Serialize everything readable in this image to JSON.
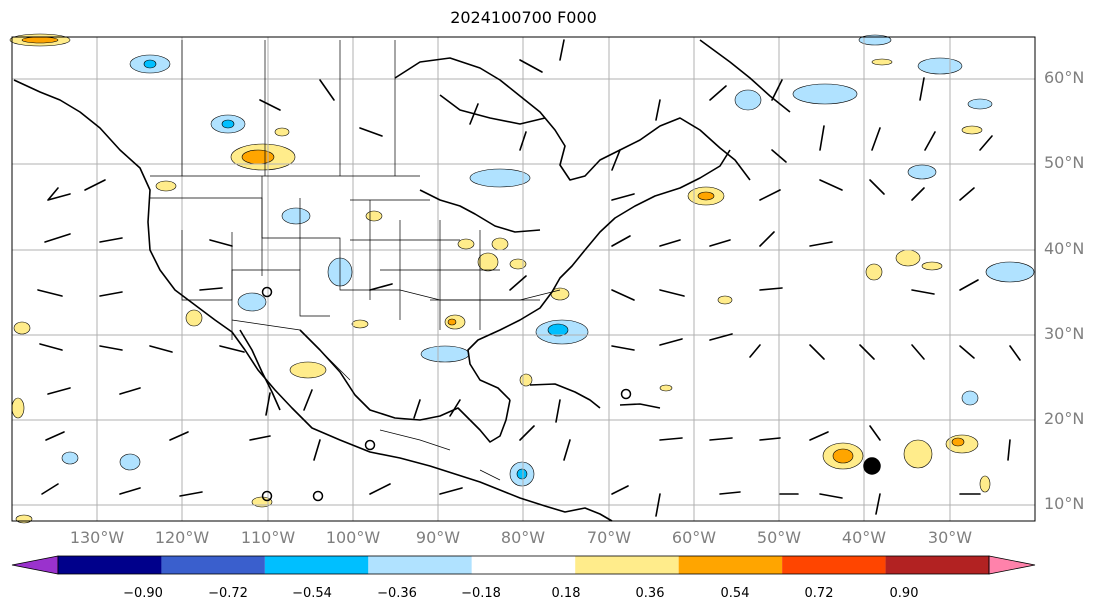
{
  "title": "2024100700 F000",
  "lat_labels": [
    "60°N",
    "50°N",
    "40°N",
    "30°N",
    "20°N",
    "10°N"
  ],
  "lon_labels": [
    "130°W",
    "120°W",
    "110°W",
    "100°W",
    "90°W",
    "80°W",
    "70°W",
    "60°W",
    "50°W",
    "40°W",
    "30°W"
  ],
  "colorbar": {
    "ticks": [
      "−0.90",
      "−0.72",
      "−0.54",
      "−0.36",
      "−0.18",
      "0.18",
      "0.36",
      "0.54",
      "0.72",
      "0.90"
    ],
    "colors": [
      "#9a32cd",
      "#00008b",
      "#3a5fcd",
      "#00bfff",
      "#b0e2ff",
      "#ffffff",
      "#ffec8b",
      "#ffa500",
      "#ff4500",
      "#b22222",
      "#ff82ab"
    ]
  }
}
